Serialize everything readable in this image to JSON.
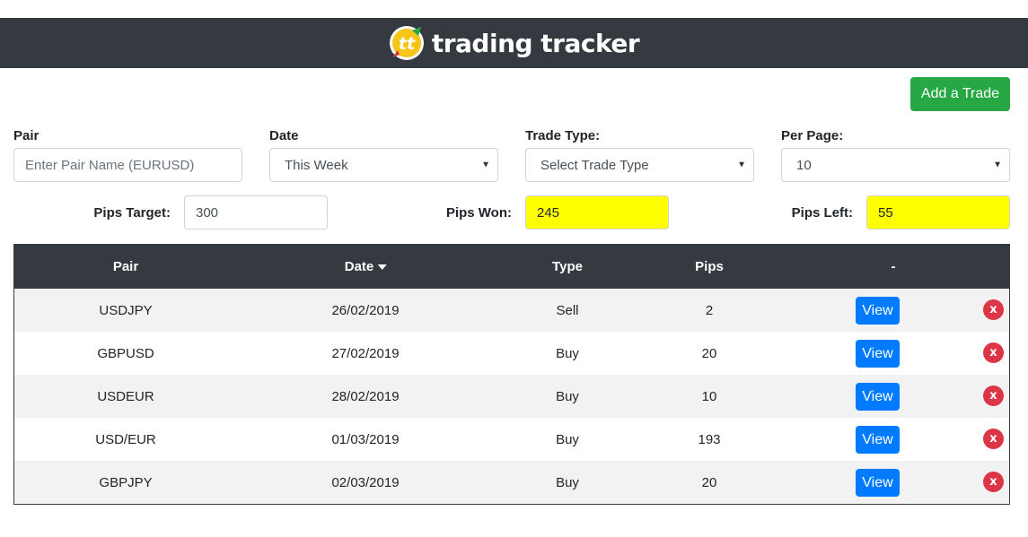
{
  "header": {
    "brand": "trading tracker",
    "logo_letters": "tt"
  },
  "actions": {
    "add_trade": "Add a Trade"
  },
  "filters": {
    "pair": {
      "label": "Pair",
      "placeholder": "Enter Pair Name (EURUSD)",
      "value": ""
    },
    "date": {
      "label": "Date",
      "value": "This Week"
    },
    "trade_type": {
      "label": "Trade Type:",
      "value": "Select Trade Type"
    },
    "per_page": {
      "label": "Per Page:",
      "value": "10"
    }
  },
  "pips": {
    "target": {
      "label": "Pips Target:",
      "value": "300"
    },
    "won": {
      "label": "Pips Won:",
      "value": "245"
    },
    "left": {
      "label": "Pips Left:",
      "value": "55"
    }
  },
  "table": {
    "headers": {
      "pair": "Pair",
      "date": "Date",
      "type": "Type",
      "pips": "Pips",
      "actions": "-"
    },
    "view_label": "View",
    "delete_label": "x",
    "rows": [
      {
        "pair": "USDJPY",
        "date": "26/02/2019",
        "type": "Sell",
        "pips": "2"
      },
      {
        "pair": "GBPUSD",
        "date": "27/02/2019",
        "type": "Buy",
        "pips": "20"
      },
      {
        "pair": "USDEUR",
        "date": "28/02/2019",
        "type": "Buy",
        "pips": "10"
      },
      {
        "pair": "USD/EUR",
        "date": "01/03/2019",
        "type": "Buy",
        "pips": "193"
      },
      {
        "pair": "GBPJPY",
        "date": "02/03/2019",
        "type": "Buy",
        "pips": "20"
      }
    ]
  },
  "colors": {
    "header_bg": "#343a40",
    "logo_bg": "#f5c518",
    "add_button": "#28a745",
    "view_button": "#007bff",
    "delete_button": "#dc3545",
    "highlight": "#ffff00"
  }
}
